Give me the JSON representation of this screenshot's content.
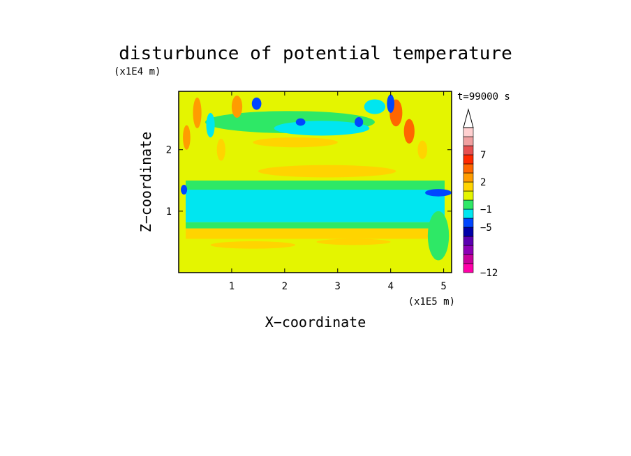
{
  "chart_data": {
    "type": "heatmap",
    "title": "disturbunce of potential temperature",
    "xlabel": "X−coordinate",
    "ylabel": "Z−coordinate",
    "x_unit": "(x1E5 m)",
    "y_unit": "(x1E4 m)",
    "time_label": "t=99000 s",
    "xlim": [
      0,
      5.15
    ],
    "ylim": [
      0,
      2.95
    ],
    "x_ticks": [
      1,
      2,
      3,
      4,
      5
    ],
    "x_tick_labels": [
      "1",
      "2",
      "3",
      "4",
      "5"
    ],
    "y_ticks": [
      1,
      2
    ],
    "y_tick_labels": [
      "1",
      "2"
    ],
    "colorbar": {
      "colors": [
        "#ff00a8",
        "#c8009a",
        "#8c00b4",
        "#5a00b0",
        "#0000a8",
        "#0046ff",
        "#00e6f0",
        "#2ee866",
        "#e4f500",
        "#ffd400",
        "#ff9c00",
        "#ff6600",
        "#ff2a00",
        "#e65050",
        "#f0a0a0",
        "#ffd0d0"
      ],
      "tick_labels": [
        "−12",
        "−5",
        "−1",
        "2",
        "7"
      ],
      "tick_boundaries": [
        0,
        5,
        7,
        10,
        13
      ],
      "extend": "max"
    },
    "bands": [
      {
        "z0": 0.0,
        "z1": 0.35,
        "color": "#e4f500"
      },
      {
        "z0": 0.35,
        "z1": 0.55,
        "color": "#e4f500"
      },
      {
        "z0": 0.55,
        "z1": 0.72,
        "color": "#ffd400"
      },
      {
        "z0": 0.72,
        "z1": 0.82,
        "color": "#2ee866"
      },
      {
        "z0": 0.82,
        "z1": 1.35,
        "color": "#00e6f0"
      },
      {
        "z0": 1.35,
        "z1": 1.5,
        "color": "#2ee866"
      },
      {
        "z0": 1.5,
        "z1": 1.8,
        "color": "#e4f500"
      }
    ],
    "blobs": [
      {
        "x": 2.1,
        "z": 2.45,
        "rx": 1.6,
        "rz": 0.18,
        "color": "#2ee866"
      },
      {
        "x": 2.2,
        "z": 2.75,
        "rx": 1.1,
        "rz": 0.12,
        "color": "#e4f500"
      },
      {
        "x": 2.2,
        "z": 2.12,
        "rx": 0.8,
        "rz": 0.08,
        "color": "#ffd400"
      },
      {
        "x": 2.8,
        "z": 1.65,
        "rx": 1.3,
        "rz": 0.1,
        "color": "#ffd400"
      },
      {
        "x": 2.7,
        "z": 2.35,
        "rx": 0.9,
        "rz": 0.12,
        "color": "#00e6f0"
      },
      {
        "x": 1.47,
        "z": 2.75,
        "rx": 0.09,
        "rz": 0.1,
        "color": "#0046ff"
      },
      {
        "x": 2.3,
        "z": 2.45,
        "rx": 0.09,
        "rz": 0.06,
        "color": "#0046ff"
      },
      {
        "x": 3.4,
        "z": 2.45,
        "rx": 0.08,
        "rz": 0.08,
        "color": "#0046ff"
      },
      {
        "x": 1.1,
        "z": 2.7,
        "rx": 0.1,
        "rz": 0.18,
        "color": "#ff9c00"
      },
      {
        "x": 4.1,
        "z": 2.6,
        "rx": 0.12,
        "rz": 0.22,
        "color": "#ff6600"
      },
      {
        "x": 4.35,
        "z": 2.3,
        "rx": 0.1,
        "rz": 0.2,
        "color": "#ff6600"
      },
      {
        "x": 4.6,
        "z": 2.0,
        "rx": 0.09,
        "rz": 0.15,
        "color": "#ffd400"
      },
      {
        "x": 4.0,
        "z": 2.75,
        "rx": 0.07,
        "rz": 0.15,
        "color": "#0046ff"
      },
      {
        "x": 4.9,
        "z": 1.3,
        "rx": 0.25,
        "rz": 0.06,
        "color": "#0046ff"
      },
      {
        "x": 0.1,
        "z": 1.35,
        "rx": 0.06,
        "rz": 0.08,
        "color": "#0046ff"
      },
      {
        "x": 0.35,
        "z": 2.6,
        "rx": 0.08,
        "rz": 0.25,
        "color": "#ff9c00"
      },
      {
        "x": 0.15,
        "z": 2.2,
        "rx": 0.07,
        "rz": 0.2,
        "color": "#ff9c00"
      },
      {
        "x": 0.6,
        "z": 2.4,
        "rx": 0.08,
        "rz": 0.2,
        "color": "#00e6f0"
      },
      {
        "x": 0.8,
        "z": 2.0,
        "rx": 0.08,
        "rz": 0.18,
        "color": "#ffd400"
      },
      {
        "x": 3.7,
        "z": 2.7,
        "rx": 0.2,
        "rz": 0.12,
        "color": "#00e6f0"
      },
      {
        "x": 1.4,
        "z": 0.45,
        "rx": 0.8,
        "rz": 0.06,
        "color": "#ffd400"
      },
      {
        "x": 3.3,
        "z": 0.5,
        "rx": 0.7,
        "rz": 0.05,
        "color": "#ffd400"
      },
      {
        "x": 4.9,
        "z": 0.6,
        "rx": 0.2,
        "rz": 0.4,
        "color": "#2ee866"
      }
    ]
  }
}
